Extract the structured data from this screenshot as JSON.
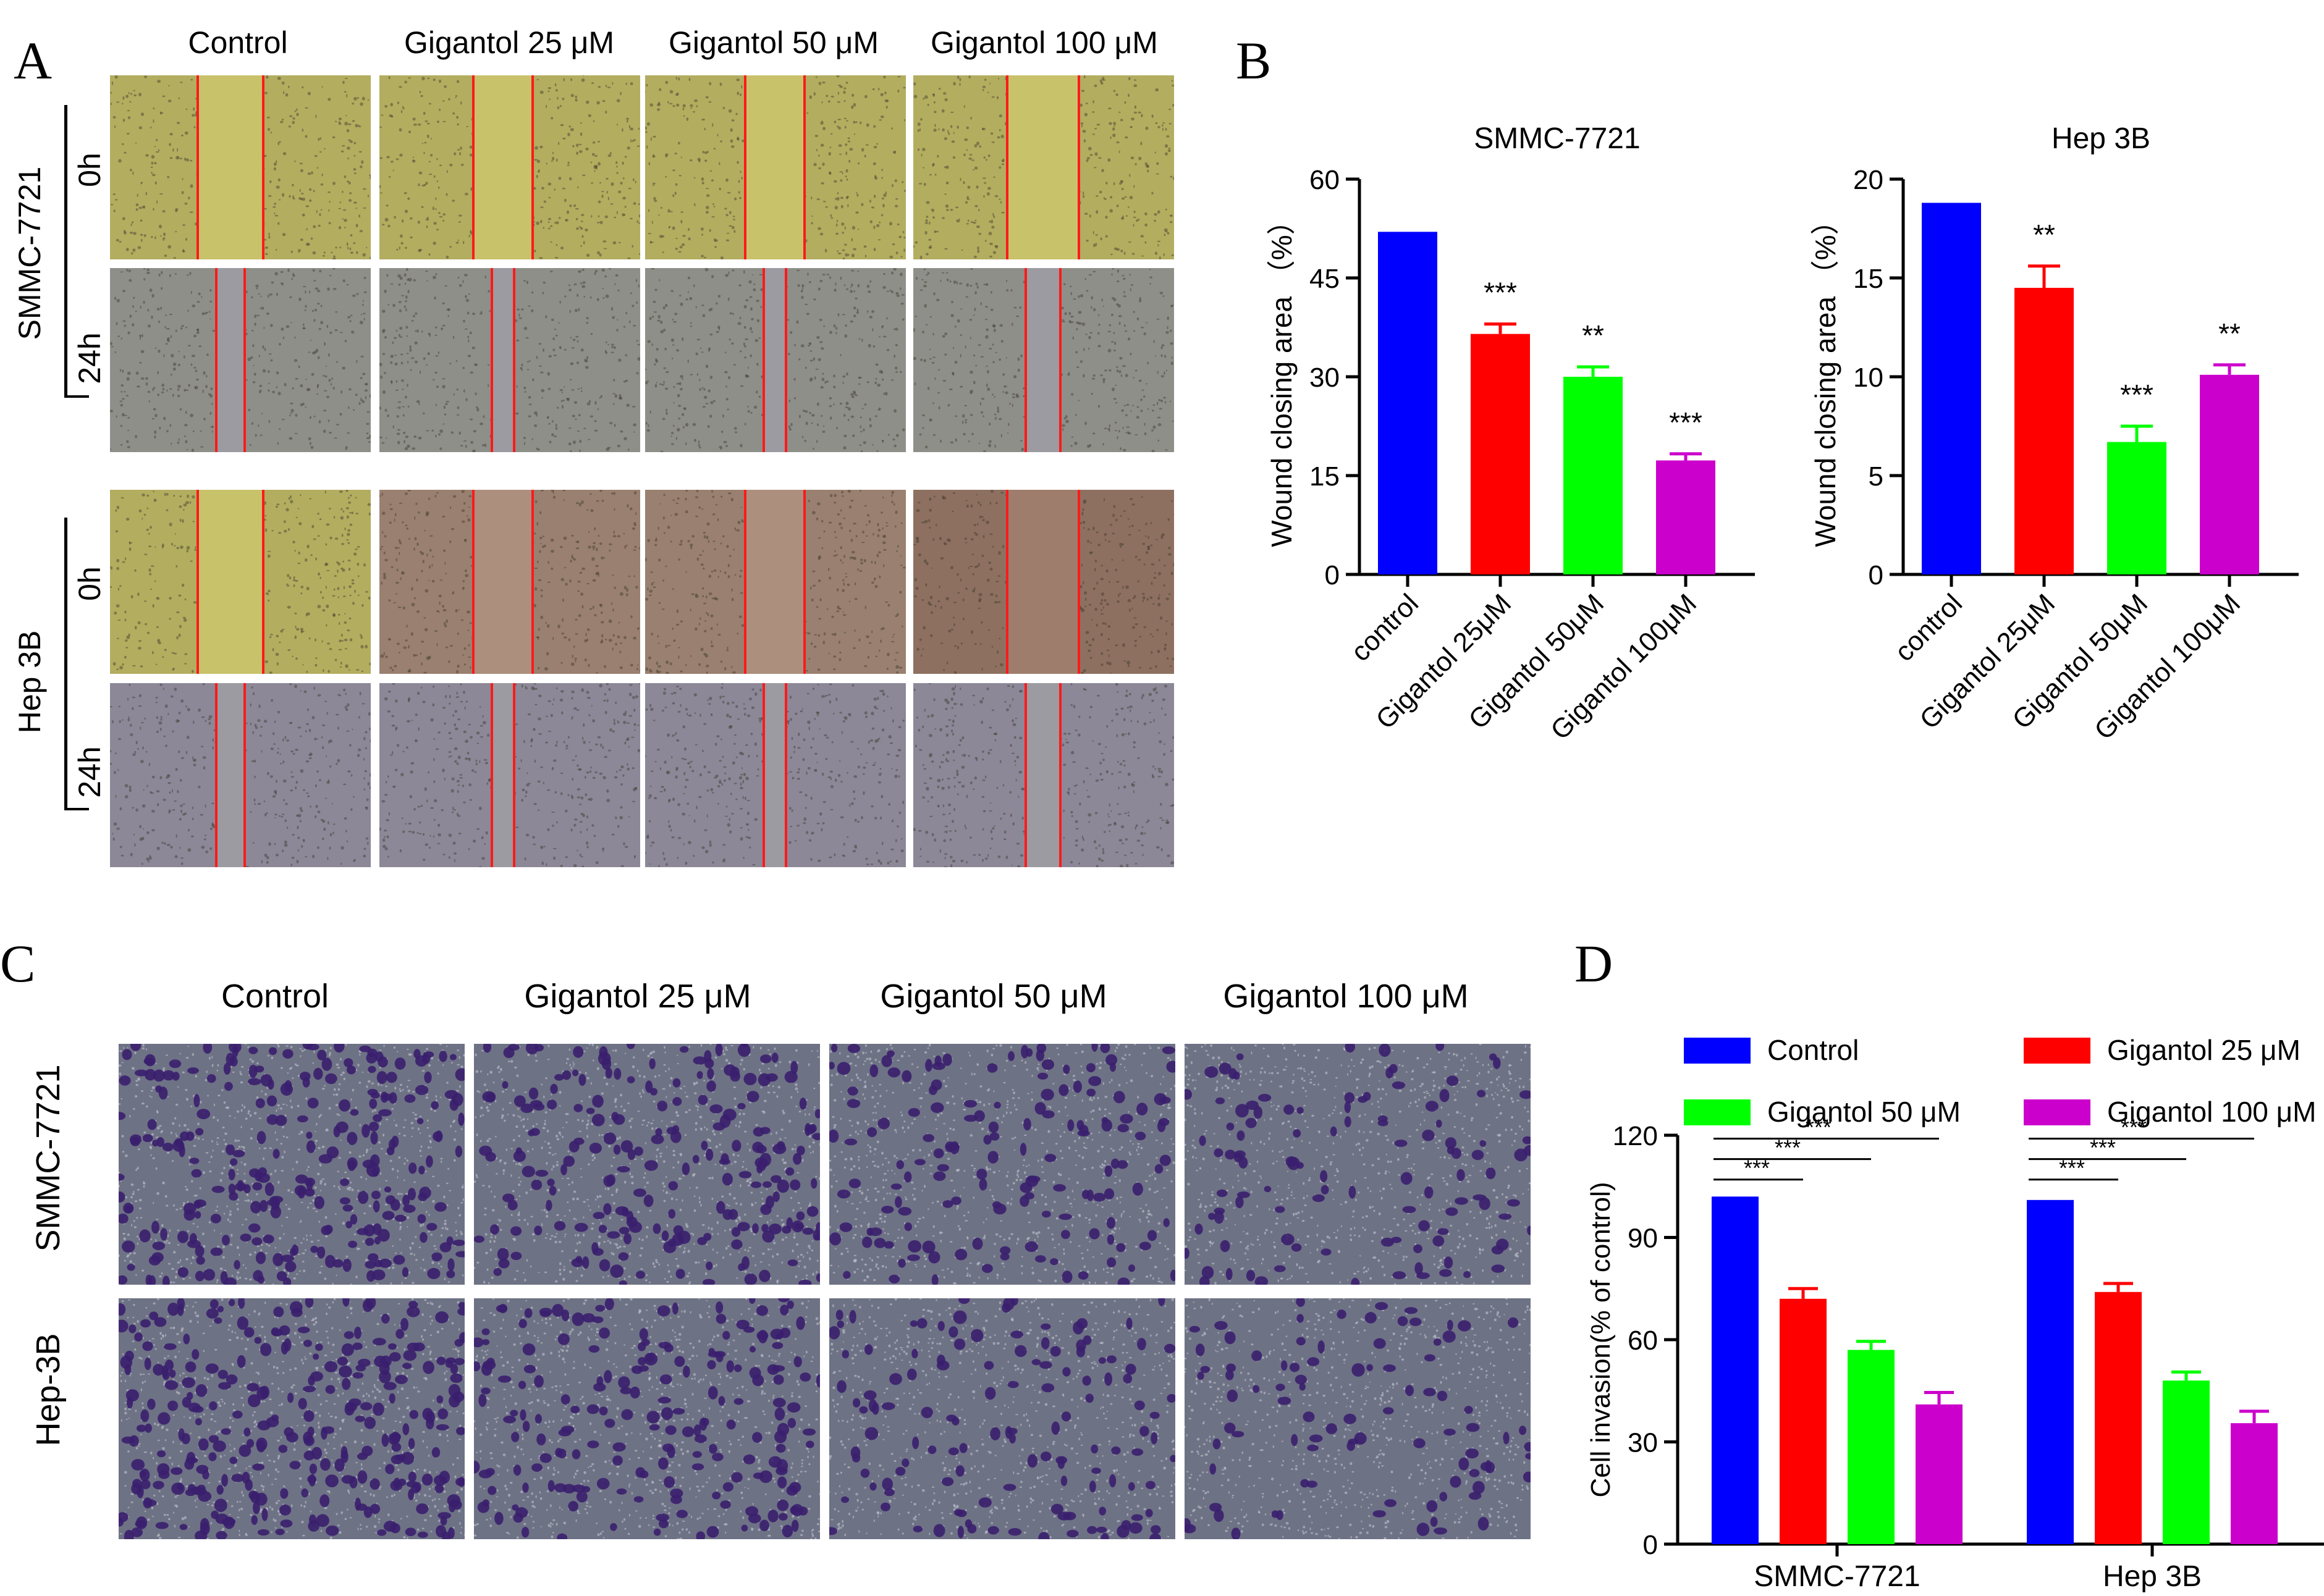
{
  "panels": {
    "a": "A",
    "b": "B",
    "c": "C",
    "d": "D"
  },
  "panel_a": {
    "columns": [
      "Control",
      "Gigantol 25 μM",
      "Gigantol 50 μM",
      "Gigantol 100 μM"
    ],
    "cell_lines": [
      "SMMC-7721",
      "Hep 3B"
    ],
    "timepoints": [
      "0h",
      "24h"
    ]
  },
  "panel_c": {
    "columns": [
      "Control",
      "Gigantol 25 μM",
      "Gigantol 50 μM",
      "Gigantol 100 μM"
    ],
    "cell_lines": [
      "SMMC-7721",
      "Hep-3B"
    ]
  },
  "colors": {
    "control": "#0000ff",
    "g25": "#ff0000",
    "g50": "#00ff00",
    "g100": "#cc00cc"
  },
  "chart_data": [
    {
      "id": "B-left",
      "type": "bar",
      "title": "SMMC-7721",
      "ylabel": "Wound closing area （%）",
      "categories": [
        "control",
        "Gigantol 25μM",
        "Gigantol 50μM",
        "Gigantol 100μM"
      ],
      "values": [
        52,
        36.5,
        30,
        17.3
      ],
      "errors": [
        0,
        1.5,
        1.5,
        1
      ],
      "significance": [
        "",
        "***",
        "**",
        "***"
      ],
      "ylim": [
        0,
        60
      ],
      "yticks": [
        0,
        15,
        30,
        45,
        60
      ]
    },
    {
      "id": "B-right",
      "type": "bar",
      "title": "Hep 3B",
      "ylabel": "Wound closing area （%）",
      "categories": [
        "control",
        "Gigantol 25μM",
        "Gigantol 50μM",
        "Gigantol 100μM"
      ],
      "values": [
        18.8,
        14.5,
        6.7,
        10.1
      ],
      "errors": [
        0,
        1.1,
        0.8,
        0.5
      ],
      "significance": [
        "",
        "**",
        "***",
        "**"
      ],
      "ylim": [
        0,
        20
      ],
      "yticks": [
        0,
        5,
        10,
        15,
        20
      ]
    },
    {
      "id": "D",
      "type": "bar",
      "ylabel": "Cell invasion(% of  control)",
      "categories": [
        "SMMC-7721",
        "Hep 3B"
      ],
      "series": [
        {
          "name": "Control",
          "values": [
            102,
            101
          ],
          "errors": [
            0,
            0
          ]
        },
        {
          "name": "Gigantol 25 μM",
          "values": [
            72,
            74
          ],
          "errors": [
            3,
            2.5
          ]
        },
        {
          "name": "Gigantol 50 μM",
          "values": [
            57,
            48
          ],
          "errors": [
            2.5,
            2.5
          ]
        },
        {
          "name": "Gigantol 100 μM",
          "values": [
            41,
            35.5
          ],
          "errors": [
            3.5,
            3.5
          ]
        }
      ],
      "significance_label": "***",
      "ylim": [
        0,
        120
      ],
      "yticks": [
        0,
        30,
        60,
        90,
        120
      ]
    }
  ]
}
